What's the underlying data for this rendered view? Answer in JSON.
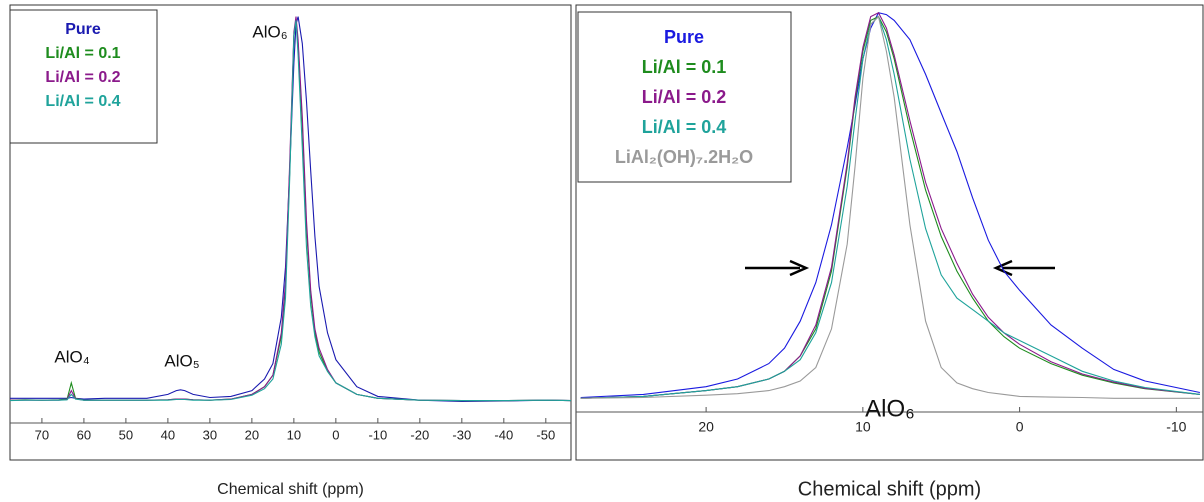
{
  "chart_data": [
    {
      "type": "line",
      "xlabel": "Chemical shift (ppm)",
      "x": [
        77.6,
        74,
        70,
        66,
        64,
        63,
        62,
        60,
        55,
        45,
        40,
        38,
        37,
        36,
        34,
        30,
        25,
        20,
        17,
        15,
        13,
        12,
        11,
        10,
        9.5,
        9,
        8,
        7,
        6,
        5,
        4,
        2,
        0,
        -5,
        -10,
        -20,
        -30,
        -40,
        -50,
        -56
      ],
      "xlim": [
        77.6,
        -56
      ],
      "xticks": [
        70,
        60,
        50,
        40,
        30,
        20,
        10,
        0,
        -10,
        -20,
        -30,
        -40,
        -50
      ],
      "ylim": [
        -0.15,
        1.03
      ],
      "annotations": [
        "AlO₄",
        "AlO₅",
        "AlO₆"
      ],
      "series": [
        {
          "name": "Pure",
          "color": "#1a1ab0",
          "values": [
            0.01,
            0.01,
            0.01,
            0.01,
            0.01,
            0.012,
            0.01,
            0.008,
            0.01,
            0.01,
            0.02,
            0.03,
            0.032,
            0.03,
            0.02,
            0.012,
            0.015,
            0.03,
            0.06,
            0.1,
            0.22,
            0.35,
            0.6,
            0.88,
            0.98,
            1.0,
            0.93,
            0.78,
            0.6,
            0.43,
            0.3,
            0.18,
            0.11,
            0.04,
            0.015,
            0.005,
            0.002,
            0.003,
            0.005,
            0.004
          ]
        },
        {
          "name": "Li/Al = 0.1",
          "color": "#1e8c1e",
          "values": [
            0.005,
            0.006,
            0.005,
            0.006,
            0.008,
            0.05,
            0.01,
            0.005,
            0.005,
            0.005,
            0.006,
            0.008,
            0.008,
            0.008,
            0.006,
            0.005,
            0.008,
            0.02,
            0.04,
            0.07,
            0.17,
            0.3,
            0.6,
            0.95,
            0.99,
            0.93,
            0.72,
            0.45,
            0.28,
            0.18,
            0.13,
            0.08,
            0.05,
            0.02,
            0.01,
            0.005,
            0.004,
            0.004,
            0.005,
            0.004
          ]
        },
        {
          "name": "Li/Al = 0.2",
          "color": "#8b1a8b",
          "values": [
            0.005,
            0.005,
            0.005,
            0.005,
            0.007,
            0.03,
            0.009,
            0.005,
            0.005,
            0.005,
            0.006,
            0.008,
            0.008,
            0.008,
            0.006,
            0.005,
            0.008,
            0.02,
            0.04,
            0.07,
            0.18,
            0.31,
            0.62,
            0.96,
            1.0,
            0.94,
            0.74,
            0.47,
            0.29,
            0.19,
            0.14,
            0.085,
            0.05,
            0.02,
            0.01,
            0.005,
            0.004,
            0.004,
            0.005,
            0.004
          ]
        },
        {
          "name": "Li/Al = 0.4",
          "color": "#1fa39b",
          "values": [
            0.004,
            0.005,
            0.005,
            0.005,
            0.006,
            0.02,
            0.008,
            0.005,
            0.005,
            0.005,
            0.005,
            0.007,
            0.007,
            0.007,
            0.005,
            0.005,
            0.007,
            0.018,
            0.035,
            0.06,
            0.15,
            0.27,
            0.58,
            0.95,
            0.99,
            0.9,
            0.66,
            0.4,
            0.25,
            0.17,
            0.12,
            0.08,
            0.05,
            0.02,
            0.01,
            0.005,
            0.004,
            0.004,
            0.005,
            0.004
          ]
        }
      ]
    },
    {
      "type": "line",
      "xlabel": "Chemical shift (ppm)",
      "x": [
        28,
        24,
        20,
        18,
        16,
        15,
        14,
        13,
        12,
        11,
        10.5,
        10,
        9.5,
        9,
        8.5,
        8,
        7,
        6,
        5,
        4,
        3,
        2,
        1,
        0,
        -2,
        -4,
        -6,
        -8,
        -11.5
      ],
      "xlim": [
        28.3,
        -11.7
      ],
      "xticks": [
        20,
        10,
        0,
        -10
      ],
      "ylim": [
        -0.16,
        1.02
      ],
      "annotations": [
        "AlO₆"
      ],
      "series": [
        {
          "name": "Pure",
          "color": "#1a1ae0",
          "values": [
            0.002,
            0.01,
            0.03,
            0.05,
            0.09,
            0.13,
            0.2,
            0.3,
            0.45,
            0.65,
            0.76,
            0.88,
            0.96,
            1.0,
            0.995,
            0.98,
            0.93,
            0.84,
            0.74,
            0.64,
            0.52,
            0.41,
            0.33,
            0.28,
            0.19,
            0.13,
            0.075,
            0.045,
            0.015
          ]
        },
        {
          "name": "Li/Al = 0.1",
          "color": "#1e8c1e",
          "values": [
            0,
            0.005,
            0.02,
            0.03,
            0.05,
            0.07,
            0.11,
            0.18,
            0.33,
            0.6,
            0.77,
            0.9,
            0.98,
            0.99,
            0.95,
            0.88,
            0.7,
            0.54,
            0.42,
            0.33,
            0.26,
            0.2,
            0.16,
            0.13,
            0.09,
            0.06,
            0.04,
            0.025,
            0.01
          ]
        },
        {
          "name": "Li/Al = 0.2",
          "color": "#8b1a8b",
          "values": [
            0,
            0.005,
            0.02,
            0.03,
            0.05,
            0.07,
            0.11,
            0.19,
            0.34,
            0.61,
            0.78,
            0.91,
            0.99,
            1.0,
            0.96,
            0.89,
            0.72,
            0.56,
            0.44,
            0.35,
            0.27,
            0.21,
            0.17,
            0.14,
            0.095,
            0.063,
            0.042,
            0.026,
            0.01
          ]
        },
        {
          "name": "Li/Al = 0.4",
          "color": "#1fa39b",
          "values": [
            0,
            0.005,
            0.02,
            0.03,
            0.05,
            0.07,
            0.1,
            0.17,
            0.3,
            0.55,
            0.72,
            0.88,
            0.97,
            0.99,
            0.93,
            0.84,
            0.62,
            0.44,
            0.32,
            0.26,
            0.23,
            0.2,
            0.17,
            0.15,
            0.11,
            0.07,
            0.045,
            0.028,
            0.01
          ]
        },
        {
          "name": "LiAl₂(OH)₇.2H₂O",
          "color": "#9a9a9a",
          "values": [
            0,
            0.002,
            0.008,
            0.012,
            0.02,
            0.03,
            0.045,
            0.08,
            0.18,
            0.4,
            0.6,
            0.83,
            0.97,
            0.99,
            0.9,
            0.78,
            0.45,
            0.2,
            0.08,
            0.04,
            0.025,
            0.015,
            0.01,
            0.005,
            0.003,
            0.002,
            0,
            0,
            0
          ]
        }
      ]
    }
  ]
}
